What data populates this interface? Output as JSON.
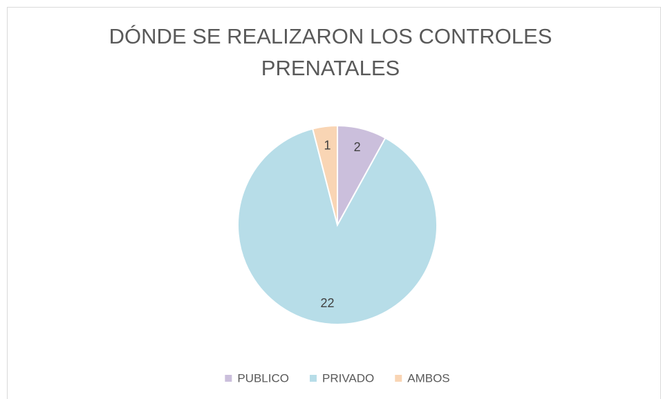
{
  "chart_data": {
    "type": "pie",
    "title": "DÓNDE SE REALIZARON LOS CONTROLES PRENATALES",
    "categories": [
      "PUBLICO",
      "PRIVADO",
      "AMBOS"
    ],
    "values": [
      2,
      22,
      1
    ],
    "colors": [
      "#cbbfdc",
      "#b7dde8",
      "#f9d5b4"
    ],
    "legend": "bottom"
  }
}
